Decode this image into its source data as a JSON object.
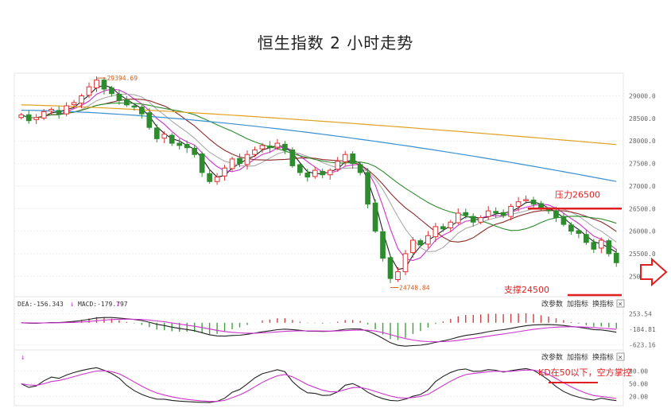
{
  "title": "恒生指数 2 小时走势",
  "colors": {
    "up": "#e03030",
    "down": "#2e8b2e",
    "ma_black": "#222222",
    "ma_magenta": "#cc33cc",
    "ma_gray": "#aaaaaa",
    "ma_brown": "#8b2a2a",
    "ma_green": "#2e8b2e",
    "ma_blue": "#3a8fd0",
    "ma_orange": "#e0a020",
    "annotation": "#e02020",
    "hist_up": "#d04040",
    "hist_down": "#40a040"
  },
  "chart_data": [
    {
      "type": "candlestick",
      "name": "main",
      "ylim": [
        24600,
        29450
      ],
      "yticks": [
        25000,
        25500,
        26000,
        26500,
        27000,
        27500,
        28000,
        28500,
        29000
      ],
      "ytick_labels": [
        "25000.0",
        "25500.0",
        "26000.0",
        "26500.0",
        "27000.0",
        "27500.0",
        "28000.0",
        "28500.0",
        "29000.0"
      ],
      "high_marker": {
        "label": "29394.69",
        "value": 29394.69
      },
      "low_marker": {
        "label": "24748.84",
        "value": 24748.84
      },
      "annotations": [
        {
          "text": "压力26500",
          "value": 26500
        },
        {
          "text": "支撑24500",
          "value": 24500
        }
      ],
      "closes": [
        28580,
        28450,
        28520,
        28650,
        28700,
        28600,
        28780,
        28850,
        29000,
        29200,
        29350,
        29150,
        29050,
        28900,
        28800,
        28750,
        28600,
        28300,
        28050,
        28150,
        27950,
        27900,
        27850,
        27700,
        27300,
        27100,
        27200,
        27400,
        27600,
        27500,
        27700,
        27800,
        27900,
        27850,
        27950,
        27800,
        27450,
        27300,
        27200,
        27350,
        27250,
        27350,
        27550,
        27700,
        27500,
        27300,
        26600,
        26000,
        25400,
        24950,
        25100,
        25500,
        25800,
        25700,
        25900,
        26100,
        26050,
        26200,
        26400,
        26350,
        26200,
        26300,
        26450,
        26400,
        26350,
        26550,
        26650,
        26700,
        26600,
        26500,
        26450,
        26300,
        26150,
        26000,
        25950,
        25750,
        25600,
        25800,
        25500,
        25300
      ],
      "moving_averages": [
        {
          "name": "MA-black"
        },
        {
          "name": "MA-magenta"
        },
        {
          "name": "MA-gray"
        },
        {
          "name": "MA-brown"
        },
        {
          "name": "MA-green"
        },
        {
          "name": "MA-blue"
        },
        {
          "name": "MA-orange"
        }
      ]
    },
    {
      "type": "macd",
      "name": "macd",
      "dea_label": "DEA:-156.343",
      "macd_label": "MACD:-179.797",
      "yticks": [
        253.54,
        -184.81,
        -623.16
      ],
      "ytick_labels": [
        "253.54",
        "-184.81",
        "-623.16"
      ],
      "ylim": [
        -700,
        400
      ]
    },
    {
      "type": "kd",
      "name": "kd",
      "yticks": [
        80,
        50,
        20
      ],
      "ytick_labels": [
        "80.00",
        "50.00",
        "20.00"
      ],
      "ylim": [
        0,
        100
      ],
      "annotation": "KD在50以下，空方掌控"
    }
  ],
  "panel_buttons": {
    "params": "改参数",
    "add": "加指标",
    "swap": "换指标",
    "close": "×"
  },
  "icons": {
    "arrow": "down-arrow-icon",
    "nav": "right-arrow-icon"
  }
}
